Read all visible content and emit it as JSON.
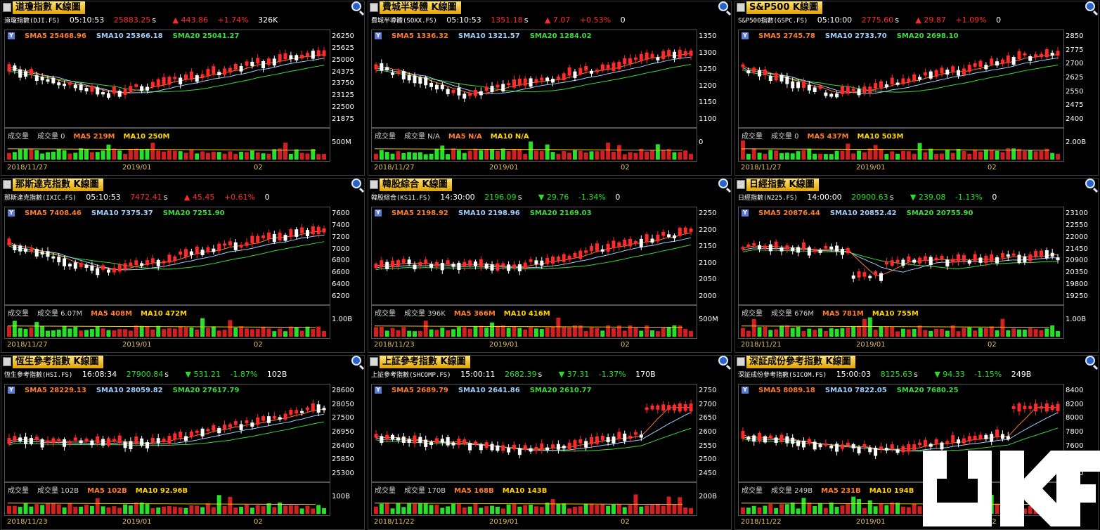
{
  "panels": [
    {
      "title": "道瓊指數 K線圖",
      "code": "道瓊指數(DJI.FS)",
      "time": "05:10:53",
      "price": "25883.25",
      "price_suffix": "s",
      "arrow": "▲",
      "change": "443.86",
      "pct": "+1.74%",
      "volume": "326K",
      "dir": "up",
      "sma5": "SMA5 25468.96",
      "sma10": "SMA10 25366.18",
      "sma20": "SMA20 25041.27",
      "vol_label": "成交量",
      "vol_value": "成交量 0",
      "ma5": "MA5 219M",
      "ma10": "MA10 250M",
      "yticks": [
        "26250",
        "25625",
        "25000",
        "24375",
        "23750",
        "23125",
        "22500",
        "21875"
      ],
      "vol_ytick": "500M",
      "xticks": [
        "2018/11/27",
        "2019/01",
        "02"
      ],
      "seed": 1,
      "trend": "vup"
    },
    {
      "title": "費城半導體 K線圖",
      "code": "費城半導體(SOXX.FS)",
      "time": "05:10:53",
      "price": "1351.18",
      "price_suffix": "s",
      "arrow": "▲",
      "change": "7.07",
      "pct": "+0.53%",
      "volume": "0",
      "dir": "up",
      "sma5": "SMA5 1336.32",
      "sma10": "SMA10 1321.57",
      "sma20": "SMA20 1284.02",
      "vol_label": "成交量",
      "vol_value": "成交量 N/A",
      "ma5": "MA5 N/A",
      "ma10": "MA10 N/A",
      "yticks": [
        "1350",
        "1300",
        "1250",
        "1200",
        "1150",
        "1100"
      ],
      "vol_ytick": "0",
      "xticks": [
        "2018/11/27",
        "2019/01",
        "02"
      ],
      "seed": 2,
      "trend": "vup"
    },
    {
      "title": "S&P500 K線圖",
      "code": "S&P500指數(GSPC.FS)",
      "time": "05:10:00",
      "price": "2775.60",
      "price_suffix": "s",
      "arrow": "▲",
      "change": "29.87",
      "pct": "+1.09%",
      "volume": "0",
      "dir": "up",
      "sma5": "SMA5 2745.78",
      "sma10": "SMA10 2733.70",
      "sma20": "SMA20 2698.10",
      "vol_label": "成交量",
      "vol_value": "成交量 0",
      "ma5": "MA5 437M",
      "ma10": "MA10 503M",
      "yticks": [
        "2850",
        "2775",
        "2700",
        "2625",
        "2550",
        "2475",
        "2400"
      ],
      "vol_ytick": "2.00B",
      "xticks": [
        "2018/11/27",
        "2019/01",
        "02"
      ],
      "seed": 3,
      "trend": "vup"
    },
    {
      "title": "那斯達克指數 K線圖",
      "code": "那斯達克指數(IXIC.FS)",
      "time": "05:10:53",
      "price": "7472.41",
      "price_suffix": "s",
      "arrow": "▲",
      "change": "45.45",
      "pct": "+0.61%",
      "volume": "0",
      "dir": "up",
      "sma5": "SMA5 7408.46",
      "sma10": "SMA10 7375.37",
      "sma20": "SMA20 7251.90",
      "vol_label": "成交量",
      "vol_value": "成交量 6.07M",
      "ma5": "MA5 408M",
      "ma10": "MA10 472M",
      "yticks": [
        "7600",
        "7400",
        "7200",
        "7000",
        "6800",
        "6600",
        "6400",
        "6200"
      ],
      "vol_ytick": "1.00B",
      "xticks": [
        "2018/11/27",
        "2019/01",
        "02"
      ],
      "seed": 4,
      "trend": "vup"
    },
    {
      "title": "韓股綜合 K線圖",
      "code": "韓股綜合(KS11.FS)",
      "time": "14:30:00",
      "price": "2196.09",
      "price_suffix": "s",
      "arrow": "▼",
      "change": "29.76",
      "pct": "-1.34%",
      "volume": "0",
      "dir": "down",
      "sma5": "SMA5 2198.92",
      "sma10": "SMA10 2198.96",
      "sma20": "SMA20 2169.03",
      "vol_label": "成交量",
      "vol_value": "成交量 396K",
      "ma5": "MA5 366M",
      "ma10": "MA10 416M",
      "yticks": [
        "2250",
        "2200",
        "2150",
        "2100",
        "2050",
        "2000"
      ],
      "vol_ytick": "500M",
      "xticks": [
        "2018/11/23",
        "2019/01",
        "02"
      ],
      "seed": 5,
      "trend": "up"
    },
    {
      "title": "日經指數 K線圖",
      "code": "日經指數(N225.FS)",
      "time": "14:00:00",
      "price": "20900.63",
      "price_suffix": "s",
      "arrow": "▼",
      "change": "239.08",
      "pct": "-1.13%",
      "volume": "0",
      "dir": "down",
      "sma5": "SMA5 20876.44",
      "sma10": "SMA10 20852.42",
      "sma20": "SMA20 20755.90",
      "vol_label": "成交量",
      "vol_value": "成交量 676M",
      "ma5": "MA5 781M",
      "ma10": "MA10 755M",
      "yticks": [
        "23100",
        "22550",
        "22000",
        "21450",
        "20900",
        "20350",
        "19800",
        "19250"
      ],
      "vol_ytick": "1.00B",
      "xticks": [
        "2018/11/21",
        "2019/01",
        "02"
      ],
      "seed": 6,
      "trend": "flat"
    },
    {
      "title": "恆生參考指數 K線圖",
      "code": "恆生參考指數(HSI.FS)",
      "time": "16:08:34",
      "price": "27900.84",
      "price_suffix": "s",
      "arrow": "▼",
      "change": "531.21",
      "pct": "-1.87%",
      "volume": "102B",
      "dir": "down",
      "sma5": "SMA5 28229.13",
      "sma10": "SMA10 28059.82",
      "sma20": "SMA20 27617.79",
      "vol_label": "成交量",
      "vol_value": "成交量 102B",
      "ma5": "MA5 102B",
      "ma10": "MA10 92.96B",
      "yticks": [
        "28600",
        "28050",
        "27500",
        "26950",
        "26400",
        "25850",
        "25300"
      ],
      "vol_ytick": "100B",
      "xticks": [
        "2018/11/23",
        "2019/01",
        "02"
      ],
      "seed": 7,
      "trend": "up"
    },
    {
      "title": "上証參考指數 K線圖",
      "code": "上証參考指數(SHCOMP.FS)",
      "time": "15:00:11",
      "price": "2682.39",
      "price_suffix": "s",
      "arrow": "▼",
      "change": "37.31",
      "pct": "-1.37%",
      "volume": "170B",
      "dir": "down",
      "sma5": "SMA5 2689.79",
      "sma10": "SMA10 2641.86",
      "sma20": "SMA20 2610.77",
      "vol_label": "成交量",
      "vol_value": "成交量 170B",
      "ma5": "MA5 168B",
      "ma10": "MA10 143B",
      "yticks": [
        "2750",
        "2700",
        "2650",
        "2600",
        "2550",
        "2500",
        "2450"
      ],
      "vol_ytick": "200B",
      "xticks": [
        "2018/11/22",
        "2019/01",
        "02"
      ],
      "seed": 8,
      "trend": "dipup"
    },
    {
      "title": "深証成份參考指數 K線圖",
      "code": "深証成份參考指數(SICOM.FS)",
      "time": "15:00:03",
      "price": "8125.63",
      "price_suffix": "s",
      "arrow": "▼",
      "change": "94.33",
      "pct": "-1.15%",
      "volume": "249B",
      "dir": "down",
      "sma5": "SMA5 8089.18",
      "sma10": "SMA10 7822.05",
      "sma20": "SMA20 7680.25",
      "vol_label": "成交量",
      "vol_value": "成交量 249B",
      "ma5": "MA5 231B",
      "ma10": "MA10 194B",
      "yticks": [
        "8400",
        "8200",
        "8000",
        "7800",
        "7600",
        "7400",
        "7200"
      ],
      "vol_ytick": "200B",
      "xticks": [
        "2018/11/22",
        "2019/01",
        "02"
      ],
      "seed": 9,
      "trend": "dipup"
    }
  ],
  "colors": {
    "up": "#ff2b2b",
    "down": "#27e02a",
    "sma5": "#ff7d2b",
    "sma10": "#9fd0ff",
    "sma20": "#3ddc3d",
    "title_bg": "#f0b400"
  },
  "watermark": {
    "text": "UKF"
  }
}
